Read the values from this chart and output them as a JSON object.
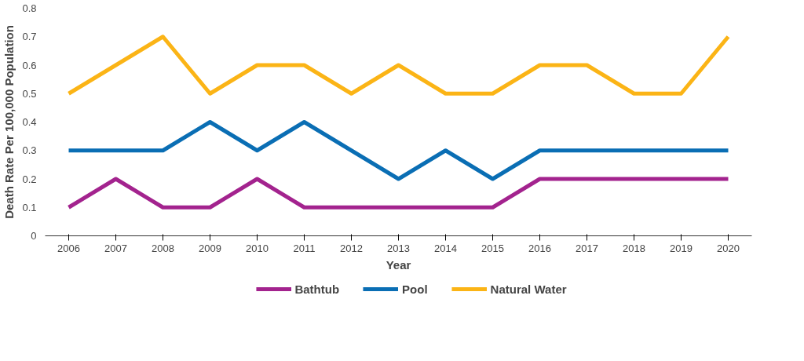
{
  "chart_data": {
    "type": "line",
    "xlabel": "Year",
    "ylabel": "Death Rate Per 100,000 Population",
    "categories": [
      "2006",
      "2007",
      "2008",
      "2009",
      "2010",
      "2011",
      "2012",
      "2013",
      "2014",
      "2015",
      "2016",
      "2017",
      "2018",
      "2019",
      "2020"
    ],
    "series": [
      {
        "name": "Bathtub",
        "color": "#a3238e",
        "values": [
          0.1,
          0.2,
          0.1,
          0.1,
          0.2,
          0.1,
          0.1,
          0.1,
          0.1,
          0.1,
          0.2,
          0.2,
          0.2,
          0.2,
          0.2
        ]
      },
      {
        "name": "Pool",
        "color": "#0a6eb4",
        "values": [
          0.3,
          0.3,
          0.3,
          0.4,
          0.3,
          0.4,
          0.3,
          0.2,
          0.3,
          0.2,
          0.3,
          0.3,
          0.3,
          0.3,
          0.3
        ]
      },
      {
        "name": "Natural Water",
        "color": "#fbb416",
        "values": [
          0.5,
          0.6,
          0.7,
          0.5,
          0.6,
          0.6,
          0.5,
          0.6,
          0.5,
          0.5,
          0.6,
          0.6,
          0.5,
          0.5,
          0.7
        ]
      }
    ],
    "ylim": [
      0,
      0.8
    ],
    "yticks": [
      0,
      0.1,
      0.2,
      0.3,
      0.4,
      0.5,
      0.6,
      0.7,
      0.8
    ],
    "grid": false,
    "legend": "bottom",
    "marker": "none",
    "line_style": "solid"
  }
}
